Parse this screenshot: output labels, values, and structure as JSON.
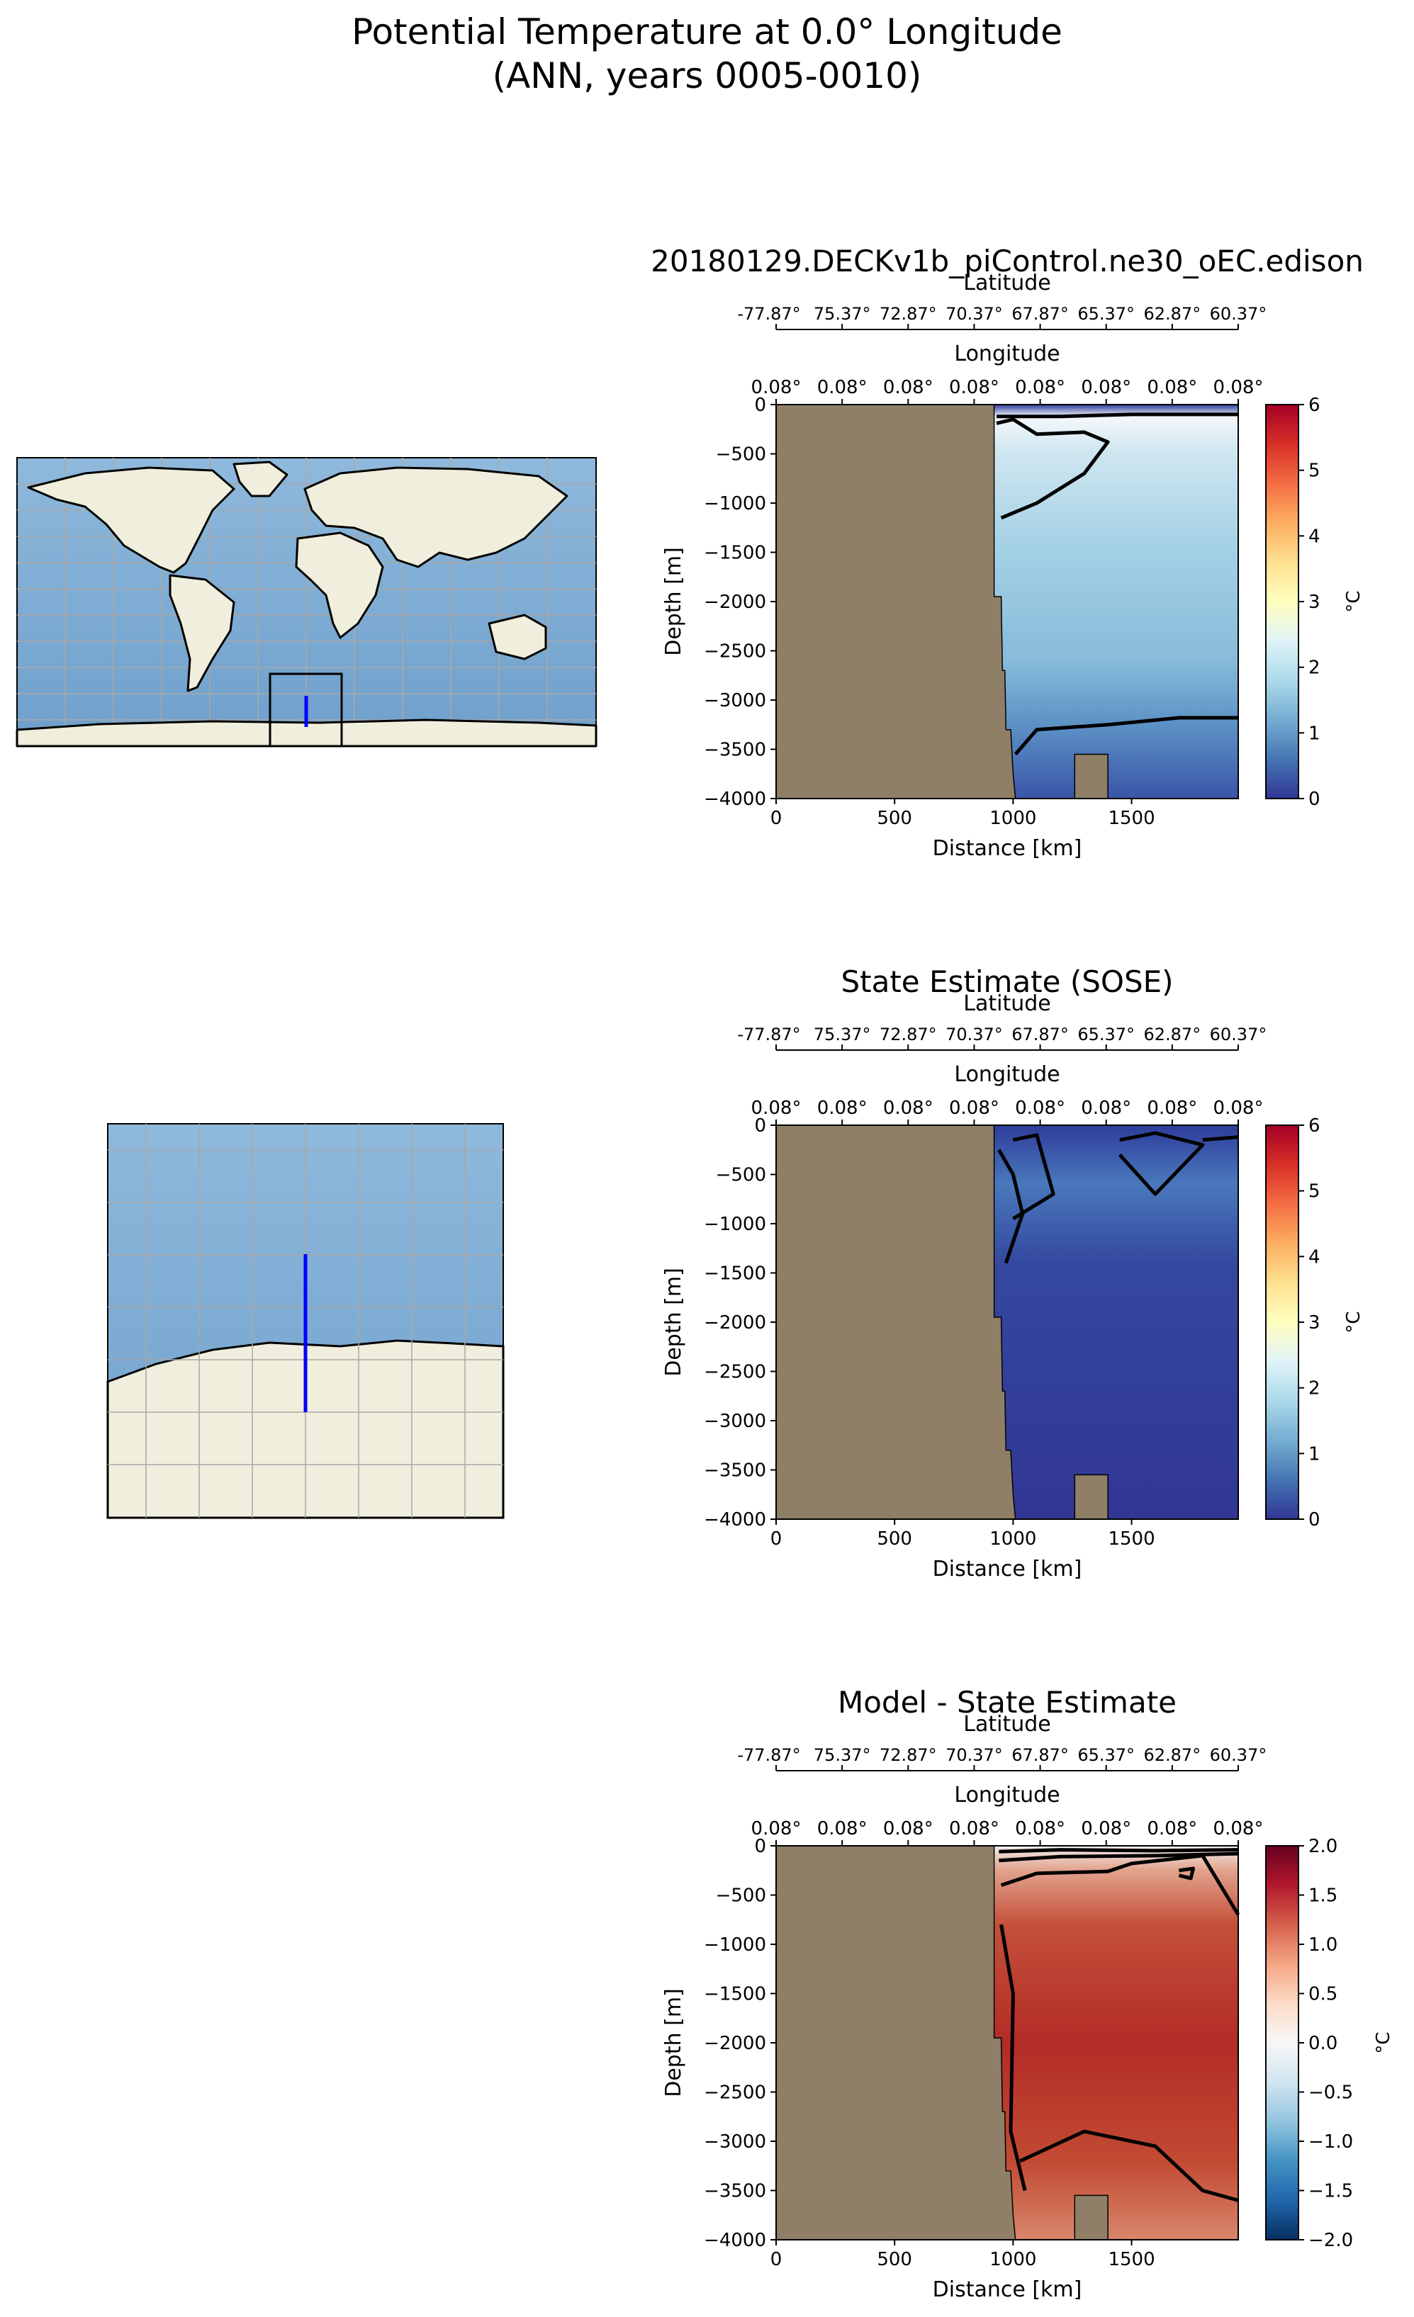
{
  "figure": {
    "title_line1": "Potential Temperature at 0.0° Longitude",
    "title_line2": "(ANN, years 0005-0010)"
  },
  "chart_data": [
    {
      "type": "heatmap",
      "title": "20180129.DECKv1b_piControl.ne30_oEC.edison",
      "xlabel": "Distance [km]",
      "ylabel": "Depth [m]",
      "xlim": [
        0,
        1950
      ],
      "ylim": [
        -4000,
        0
      ],
      "x_ticks": [
        "0",
        "500",
        "1000",
        "1500"
      ],
      "y_ticks": [
        "0",
        "−500",
        "−1000",
        "−1500",
        "−2000",
        "−2500",
        "−3000",
        "−3500",
        "−4000"
      ],
      "lat_axis_label": "Latitude",
      "lat_ticks": [
        "-77.87°",
        "75.37°",
        "72.87°",
        "70.37°",
        "67.87°",
        "65.37°",
        "62.87°",
        "60.37°"
      ],
      "lon_axis_label": "Longitude",
      "lon_ticks": [
        "0.08°",
        "0.08°",
        "0.08°",
        "0.08°",
        "0.08°",
        "0.08°",
        "0.08°",
        "0.08°"
      ],
      "colorbar": {
        "label": "°C",
        "min": 0,
        "max": 6,
        "ticks": [
          "0",
          "1",
          "2",
          "3",
          "4",
          "5",
          "6"
        ],
        "cmap": "RdYlBu_r"
      },
      "contour_levels": [
        0,
        1,
        2
      ]
    },
    {
      "type": "heatmap",
      "title": "State Estimate (SOSE)",
      "xlabel": "Distance [km]",
      "ylabel": "Depth [m]",
      "xlim": [
        0,
        1950
      ],
      "ylim": [
        -4000,
        0
      ],
      "x_ticks": [
        "0",
        "500",
        "1000",
        "1500"
      ],
      "y_ticks": [
        "0",
        "−500",
        "−1000",
        "−1500",
        "−2000",
        "−2500",
        "−3000",
        "−3500",
        "−4000"
      ],
      "lat_axis_label": "Latitude",
      "lat_ticks": [
        "-77.87°",
        "75.37°",
        "72.87°",
        "70.37°",
        "67.87°",
        "65.37°",
        "62.87°",
        "60.37°"
      ],
      "lon_axis_label": "Longitude",
      "lon_ticks": [
        "0.08°",
        "0.08°",
        "0.08°",
        "0.08°",
        "0.08°",
        "0.08°",
        "0.08°",
        "0.08°"
      ],
      "colorbar": {
        "label": "°C",
        "min": 0,
        "max": 6,
        "ticks": [
          "0",
          "1",
          "2",
          "3",
          "4",
          "5",
          "6"
        ],
        "cmap": "RdYlBu_r"
      },
      "contour_levels": [
        0,
        1
      ]
    },
    {
      "type": "heatmap",
      "title": "Model - State Estimate",
      "xlabel": "Distance [km]",
      "ylabel": "Depth [m]",
      "xlim": [
        0,
        1950
      ],
      "ylim": [
        -4000,
        0
      ],
      "x_ticks": [
        "0",
        "500",
        "1000",
        "1500"
      ],
      "y_ticks": [
        "0",
        "−500",
        "−1000",
        "−1500",
        "−2000",
        "−2500",
        "−3000",
        "−3500",
        "−4000"
      ],
      "lat_axis_label": "Latitude",
      "lat_ticks": [
        "-77.87°",
        "75.37°",
        "72.87°",
        "70.37°",
        "67.87°",
        "65.37°",
        "62.87°",
        "60.37°"
      ],
      "lon_axis_label": "Longitude",
      "lon_ticks": [
        "0.08°",
        "0.08°",
        "0.08°",
        "0.08°",
        "0.08°",
        "0.08°",
        "0.08°",
        "0.08°"
      ],
      "colorbar": {
        "label": "°C",
        "min": -2,
        "max": 2,
        "ticks": [
          "2.0",
          "1.5",
          "1.0",
          "0.5",
          "0.0",
          "−0.5",
          "−1.0",
          "−1.5",
          "−2.0"
        ],
        "cmap": "RdBu_r"
      },
      "contour_levels": [
        0,
        0.5,
        1,
        1.5
      ]
    }
  ],
  "maps": {
    "global_map": "world map with transect location box",
    "inset_map": "zoomed Southern Ocean map with transect"
  },
  "colors": {
    "land_section": "#8e7f66",
    "ocean_map": "#7aaad3",
    "land_map": "#f0eedc",
    "transect": "#0000ff"
  }
}
